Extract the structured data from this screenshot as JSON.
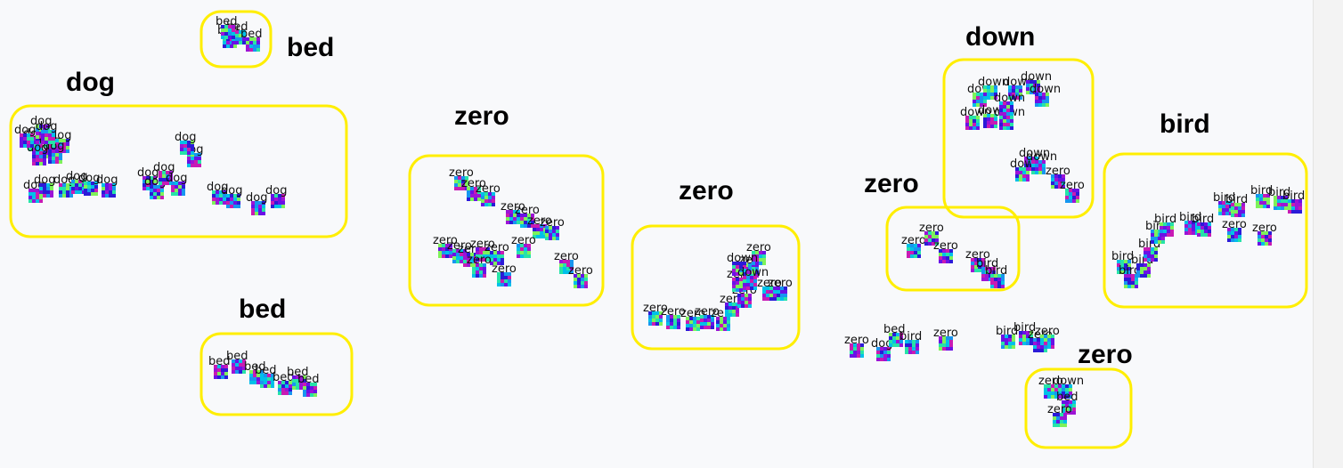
{
  "chart_data": {
    "type": "scatter",
    "title": "",
    "xlabel": "",
    "ylabel": "",
    "grid": false,
    "legend": "none",
    "colors": {
      "box": "#ffee00",
      "palette": [
        "#2b1bd8",
        "#6a11e6",
        "#9c14d6",
        "#00c0e8",
        "#27e3a8",
        "#7ef25a",
        "#1796f0",
        "#c81bb4"
      ]
    },
    "clusters": [
      {
        "label": "bed"
      },
      {
        "label": "dog"
      },
      {
        "label": "bed"
      },
      {
        "label": "zero"
      },
      {
        "label": "zero"
      },
      {
        "label": "down"
      },
      {
        "label": "zero"
      },
      {
        "label": "bird"
      },
      {
        "label": "zero"
      }
    ],
    "points": [
      {
        "label": "bed"
      },
      {
        "label": "bed"
      },
      {
        "label": "bed"
      },
      {
        "label": "bed"
      },
      {
        "label": "dog"
      },
      {
        "label": "dog"
      },
      {
        "label": "dog"
      },
      {
        "label": "dog"
      },
      {
        "label": "dog"
      },
      {
        "label": "dog"
      },
      {
        "label": "dog"
      },
      {
        "label": "dog"
      },
      {
        "label": "dog"
      },
      {
        "label": "dog"
      },
      {
        "label": "dog"
      },
      {
        "label": "dog"
      },
      {
        "label": "dog"
      },
      {
        "label": "dog"
      },
      {
        "label": "dog"
      },
      {
        "label": "dog"
      },
      {
        "label": "dog"
      },
      {
        "label": "dog"
      },
      {
        "label": "dog"
      },
      {
        "label": "dog"
      },
      {
        "label": "dog"
      },
      {
        "label": "dog"
      },
      {
        "label": "dog"
      },
      {
        "label": "dog"
      },
      {
        "label": "bed"
      },
      {
        "label": "bed"
      },
      {
        "label": "bed"
      },
      {
        "label": "bed"
      },
      {
        "label": "bed"
      },
      {
        "label": "bed"
      },
      {
        "label": "bed"
      },
      {
        "label": "zero"
      },
      {
        "label": "zero"
      },
      {
        "label": "zero"
      },
      {
        "label": "zero"
      },
      {
        "label": "zero"
      },
      {
        "label": "zero"
      },
      {
        "label": "zero"
      },
      {
        "label": "zero"
      },
      {
        "label": "zero"
      },
      {
        "label": "zero"
      },
      {
        "label": "zero"
      },
      {
        "label": "zero"
      },
      {
        "label": "zero"
      },
      {
        "label": "zero"
      },
      {
        "label": "zero"
      },
      {
        "label": "zero"
      },
      {
        "label": "zero"
      },
      {
        "label": "zero"
      },
      {
        "label": "zero"
      },
      {
        "label": "zero"
      },
      {
        "label": "zero"
      },
      {
        "label": "zero"
      },
      {
        "label": "zero"
      },
      {
        "label": "zero"
      },
      {
        "label": "zero"
      },
      {
        "label": "zero"
      },
      {
        "label": "zero"
      },
      {
        "label": "zero"
      },
      {
        "label": "zero"
      },
      {
        "label": "down"
      },
      {
        "label": "down"
      },
      {
        "label": "down"
      },
      {
        "label": "down"
      },
      {
        "label": "down"
      },
      {
        "label": "down"
      },
      {
        "label": "down"
      },
      {
        "label": "down"
      },
      {
        "label": "down"
      },
      {
        "label": "down"
      },
      {
        "label": "down"
      },
      {
        "label": "down"
      },
      {
        "label": "down"
      },
      {
        "label": "down"
      },
      {
        "label": "zero"
      },
      {
        "label": "zero"
      },
      {
        "label": "zero"
      },
      {
        "label": "zero"
      },
      {
        "label": "zero"
      },
      {
        "label": "zero"
      },
      {
        "label": "bird"
      },
      {
        "label": "bird"
      },
      {
        "label": "bird"
      },
      {
        "label": "bird"
      },
      {
        "label": "bird"
      },
      {
        "label": "bird"
      },
      {
        "label": "bird"
      },
      {
        "label": "bird"
      },
      {
        "label": "bird"
      },
      {
        "label": "bird"
      },
      {
        "label": "bird"
      },
      {
        "label": "bird"
      },
      {
        "label": "bird"
      },
      {
        "label": "bird"
      },
      {
        "label": "bird"
      },
      {
        "label": "zero"
      },
      {
        "label": "zero"
      },
      {
        "label": "zero"
      },
      {
        "label": "dog"
      },
      {
        "label": "bed"
      },
      {
        "label": "bird"
      },
      {
        "label": "zero"
      },
      {
        "label": "bird"
      },
      {
        "label": "bird"
      },
      {
        "label": "zero"
      },
      {
        "label": "zero"
      },
      {
        "label": "zero"
      },
      {
        "label": "down"
      },
      {
        "label": "bed"
      },
      {
        "label": "zero"
      }
    ]
  }
}
